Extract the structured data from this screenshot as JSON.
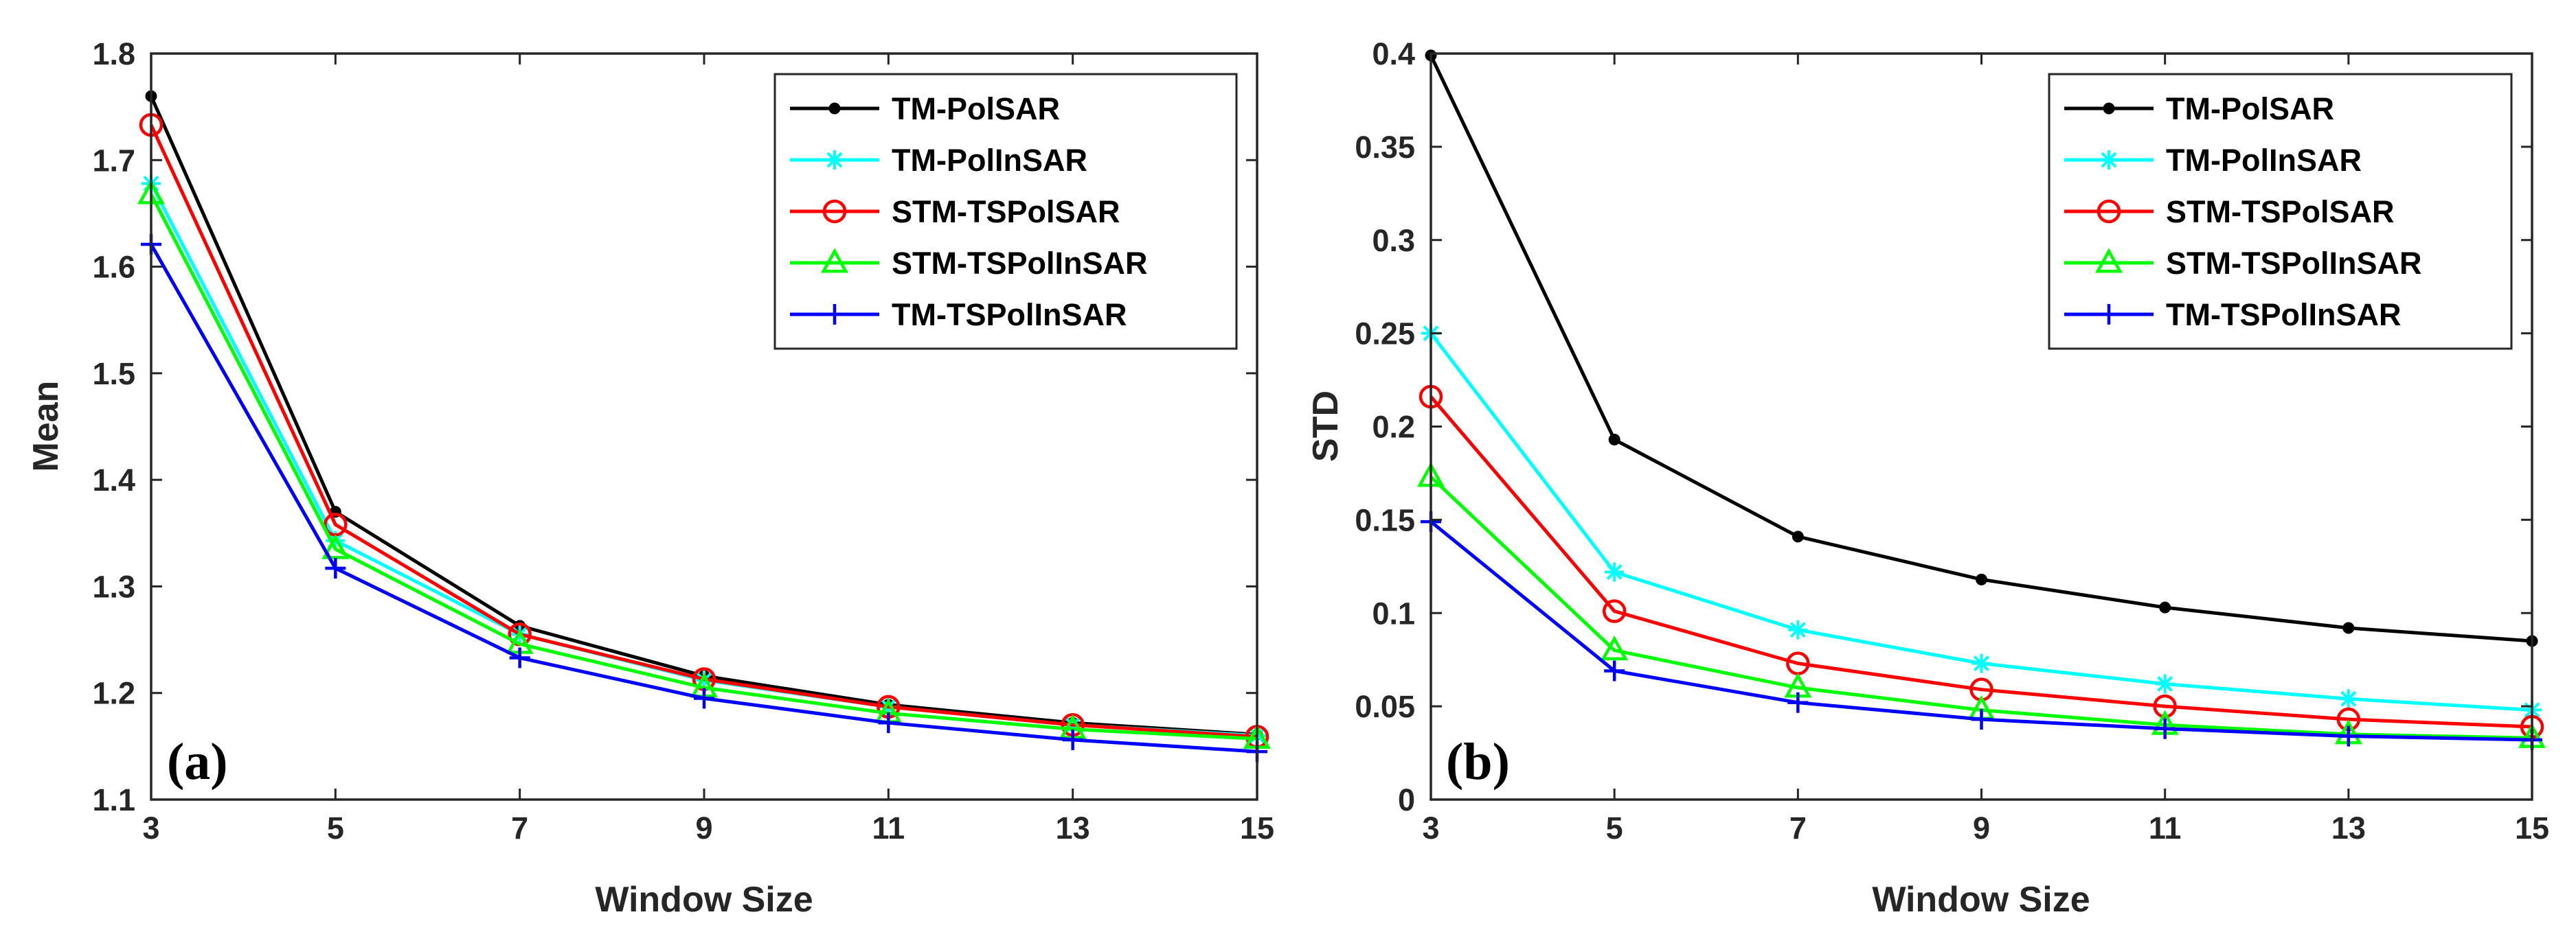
{
  "chart_data": [
    {
      "type": "line",
      "panel_label": "(a)",
      "xlabel": "Window Size",
      "ylabel": "Mean",
      "x": [
        3,
        5,
        7,
        9,
        11,
        13,
        15
      ],
      "xticks": [
        "3",
        "5",
        "7",
        "9",
        "11",
        "13",
        "15"
      ],
      "xlim": [
        3,
        15
      ],
      "ylim": [
        1.1,
        1.8
      ],
      "yticks": [
        "1.1",
        "1.2",
        "1.3",
        "1.4",
        "1.5",
        "1.6",
        "1.7",
        "1.8"
      ],
      "legend_position": "top-right",
      "grid": false,
      "series": [
        {
          "name": "TM-PolSAR",
          "color": "#000000",
          "marker": "dot",
          "values": [
            1.76,
            1.37,
            1.263,
            1.216,
            1.189,
            1.172,
            1.161
          ]
        },
        {
          "name": "TM-PolInSAR",
          "color": "#00FFFF",
          "marker": "asterisk",
          "values": [
            1.678,
            1.343,
            1.255,
            1.212,
            1.187,
            1.17,
            1.16
          ]
        },
        {
          "name": "STM-TSPolSAR",
          "color": "#FF0000",
          "marker": "circle",
          "values": [
            1.733,
            1.358,
            1.255,
            1.213,
            1.187,
            1.17,
            1.159
          ]
        },
        {
          "name": "STM-TSPolInSAR",
          "color": "#00FF00",
          "marker": "triangle",
          "values": [
            1.668,
            1.335,
            1.246,
            1.205,
            1.181,
            1.166,
            1.157
          ]
        },
        {
          "name": "TM-TSPolInSAR",
          "color": "#0000FF",
          "marker": "plus",
          "values": [
            1.621,
            1.317,
            1.233,
            1.195,
            1.172,
            1.156,
            1.145
          ]
        }
      ]
    },
    {
      "type": "line",
      "panel_label": "(b)",
      "xlabel": "Window Size",
      "ylabel": "STD",
      "x": [
        3,
        5,
        7,
        9,
        11,
        13,
        15
      ],
      "xticks": [
        "3",
        "5",
        "7",
        "9",
        "11",
        "13",
        "15"
      ],
      "xlim": [
        3,
        15
      ],
      "ylim": [
        0,
        0.4
      ],
      "yticks": [
        "0",
        "0.05",
        "0.1",
        "0.15",
        "0.2",
        "0.25",
        "0.3",
        "0.35",
        "0.4"
      ],
      "legend_position": "top-right",
      "grid": false,
      "series": [
        {
          "name": "TM-PolSAR",
          "color": "#000000",
          "marker": "dot",
          "values": [
            0.399,
            0.193,
            0.141,
            0.118,
            0.103,
            0.092,
            0.085
          ]
        },
        {
          "name": "TM-PolInSAR",
          "color": "#00FFFF",
          "marker": "asterisk",
          "values": [
            0.25,
            0.122,
            0.091,
            0.073,
            0.062,
            0.054,
            0.048
          ]
        },
        {
          "name": "STM-TSPolSAR",
          "color": "#FF0000",
          "marker": "circle",
          "values": [
            0.216,
            0.101,
            0.073,
            0.059,
            0.05,
            0.043,
            0.039
          ]
        },
        {
          "name": "STM-TSPolInSAR",
          "color": "#00FF00",
          "marker": "triangle",
          "values": [
            0.173,
            0.08,
            0.06,
            0.048,
            0.04,
            0.035,
            0.033
          ]
        },
        {
          "name": "TM-TSPolInSAR",
          "color": "#0000FF",
          "marker": "plus",
          "values": [
            0.149,
            0.069,
            0.052,
            0.043,
            0.038,
            0.034,
            0.032
          ]
        }
      ]
    }
  ]
}
